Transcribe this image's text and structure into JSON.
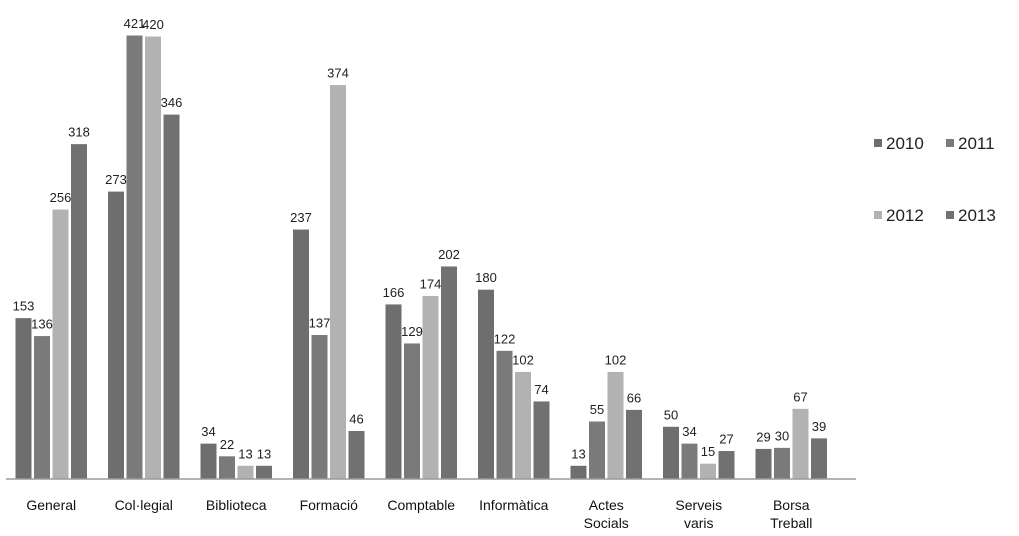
{
  "chart_data": {
    "type": "bar",
    "title": "",
    "xlabel": "",
    "ylabel": "",
    "ylim": [
      0,
      421
    ],
    "grid": false,
    "legend_position": "right",
    "categories": [
      [
        "General"
      ],
      [
        "Col·legial"
      ],
      [
        "Biblioteca"
      ],
      [
        "Formació"
      ],
      [
        "Comptable"
      ],
      [
        "Informàtica"
      ],
      [
        "Actes",
        "Socials"
      ],
      [
        "Serveis",
        "varis"
      ],
      [
        "Borsa",
        "Treball"
      ]
    ],
    "series": [
      {
        "name": "2010",
        "color": "#6e6e6e",
        "values": [
          153,
          273,
          34,
          237,
          166,
          180,
          13,
          50,
          29
        ]
      },
      {
        "name": "2011",
        "color": "#7a7a7a",
        "values": [
          136,
          421,
          22,
          137,
          129,
          122,
          55,
          34,
          30
        ]
      },
      {
        "name": "2012",
        "color": "#b2b2b2",
        "values": [
          256,
          420,
          13,
          374,
          174,
          102,
          102,
          15,
          67
        ]
      },
      {
        "name": "2013",
        "color": "#717171",
        "values": [
          318,
          346,
          13,
          46,
          202,
          74,
          66,
          27,
          39
        ]
      }
    ]
  }
}
